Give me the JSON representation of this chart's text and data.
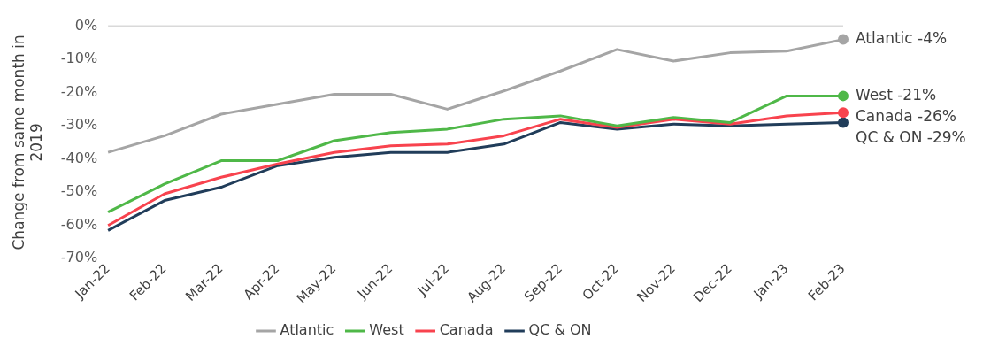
{
  "chart_data": {
    "type": "line",
    "ylabel": "Change from same month in 2019",
    "categories": [
      "Jan-22",
      "Feb-22",
      "Mar-22",
      "Apr-22",
      "May-22",
      "Jun-22",
      "Jul-22",
      "Aug-22",
      "Sep-22",
      "Oct-22",
      "Nov-22",
      "Dec-22",
      "Jan-23",
      "Feb-23"
    ],
    "series": [
      {
        "name": "Atlantic",
        "color": "#a5a5a5",
        "values": [
          -38,
          -33,
          -26.5,
          -23.5,
          -20.5,
          -20.5,
          -25,
          -19.5,
          -13.5,
          -7,
          -10.5,
          -8,
          -7.5,
          -4
        ]
      },
      {
        "name": "West",
        "color": "#4fb848",
        "values": [
          -56,
          -47.5,
          -40.5,
          -40.5,
          -34.5,
          -32,
          -31,
          -28,
          -27,
          -30,
          -27.5,
          -29,
          -21,
          -21
        ]
      },
      {
        "name": "Canada",
        "color": "#f8434e",
        "values": [
          -60,
          -50.5,
          -45.5,
          -41.5,
          -38,
          -36,
          -35.5,
          -33,
          -28,
          -30.5,
          -28,
          -29.5,
          -27,
          -26
        ]
      },
      {
        "name": "QC & ON",
        "color": "#213d5a",
        "values": [
          -61.5,
          -52.5,
          -48.5,
          -42,
          -39.5,
          -38,
          -38,
          -35.5,
          -29,
          -31,
          -29.5,
          -30,
          -29.5,
          -29
        ]
      }
    ],
    "ylim": [
      -70,
      0
    ],
    "yticks": [
      {
        "value": -70,
        "label": "-70%"
      },
      {
        "value": -60,
        "label": "-60%"
      },
      {
        "value": -50,
        "label": "-50%"
      },
      {
        "value": -40,
        "label": "-40%"
      },
      {
        "value": -30,
        "label": "-30%"
      },
      {
        "value": -20,
        "label": "-20%"
      },
      {
        "value": -10,
        "label": "-10%"
      },
      {
        "value": 0,
        "label": "0%"
      }
    ],
    "ref_lines": [
      {
        "axis": "y",
        "value": 0,
        "color": "#d9d9d9"
      }
    ],
    "annotations": [
      {
        "text": "Atlantic -4%",
        "x": "Feb-23",
        "y": -4
      },
      {
        "text": "West -21%",
        "x": "Feb-23",
        "y": -21
      },
      {
        "text": "Canada -26%",
        "x": "Feb-23",
        "y": -26
      },
      {
        "text": "QC & ON -29%",
        "x": "Feb-23",
        "y": -29
      }
    ],
    "grid": false,
    "legend": "bottom",
    "line_style": "solid"
  }
}
